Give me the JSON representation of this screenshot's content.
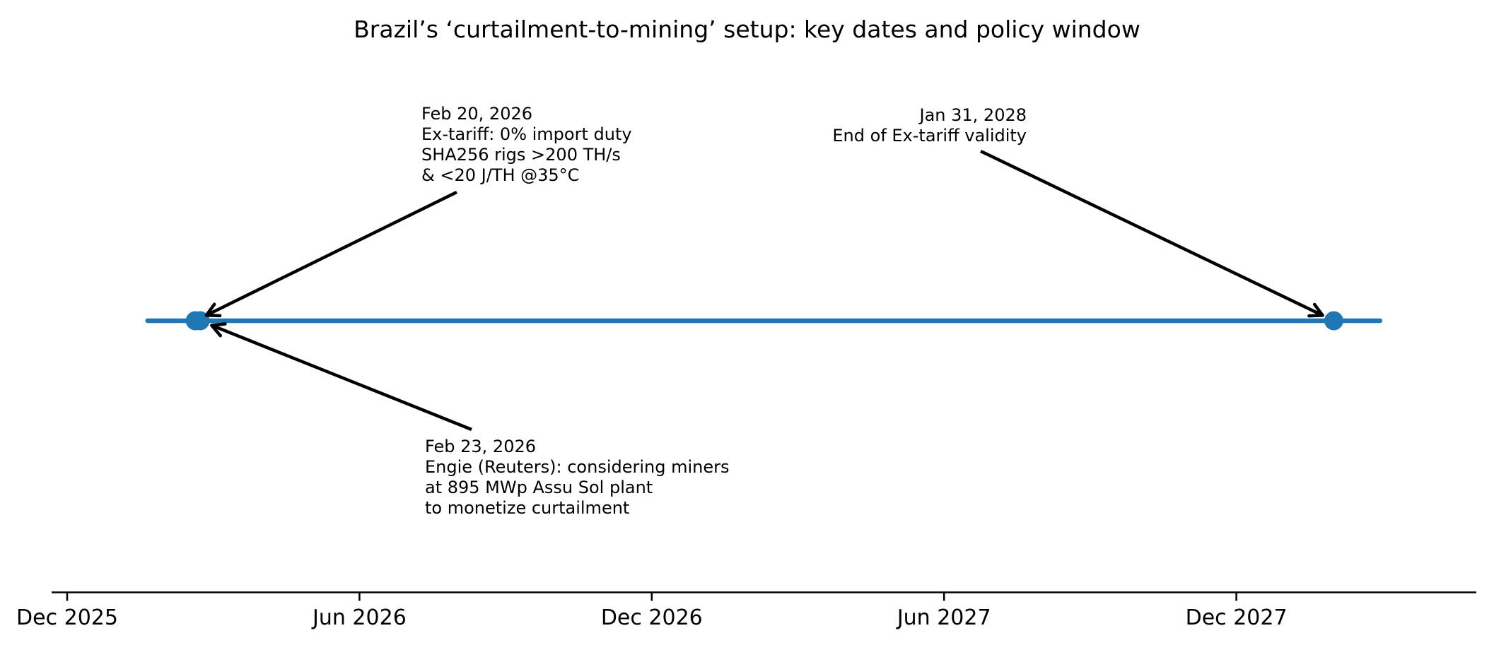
{
  "chart_data": {
    "type": "timeline",
    "title": "Brazil’s ‘curtailment-to-mining’ setup: key dates and policy window",
    "xlabel": "",
    "ylabel": "",
    "grid": false,
    "legend": "none",
    "axis": {
      "tick_unit": "months",
      "ticks": [
        {
          "label": "Dec 2025",
          "m": 0
        },
        {
          "label": "Jun 2026",
          "m": 6
        },
        {
          "label": "Dec 2026",
          "m": 12
        },
        {
          "label": "Jun 2027",
          "m": 18
        },
        {
          "label": "Dec 2027",
          "m": 24
        }
      ],
      "range_months": [
        -0.35,
        29.3
      ]
    },
    "events": [
      {
        "date": "Feb 20, 2026",
        "m": 2.63,
        "description": "Ex-tariff: 0% import duty SHA256 rigs >200 TH/s & <20 J/TH @35°C"
      },
      {
        "date": "Feb 23, 2026",
        "m": 2.73,
        "description": "Engie (Reuters): considering miners at 895 MWp Assu Sol plant to monetize curtailment"
      },
      {
        "date": "Jan 31, 2028",
        "m": 26.0,
        "description": "End of Ex-tariff validity"
      }
    ],
    "timeline_span_months": [
      1.65,
      26.95
    ],
    "annotations": [
      {
        "text": "Feb 20, 2026\nEx-tariff: 0% import duty\nSHA256 rigs >200 TH/s\n& <20 J/TH @35°C",
        "align": "left"
      },
      {
        "text": "Jan 31, 2028\nEnd of Ex-tariff validity",
        "align": "right"
      },
      {
        "text": "Feb 23, 2026\nEngie (Reuters): considering miners\nat 895 MWp Assu Sol plant\nto monetize curtailment",
        "align": "left"
      }
    ],
    "colors": {
      "timeline": "#1f77b4",
      "marker": "#1f77b4",
      "arrow": "#000000",
      "axis": "#000000",
      "text": "#000000",
      "background": "#ffffff"
    }
  }
}
